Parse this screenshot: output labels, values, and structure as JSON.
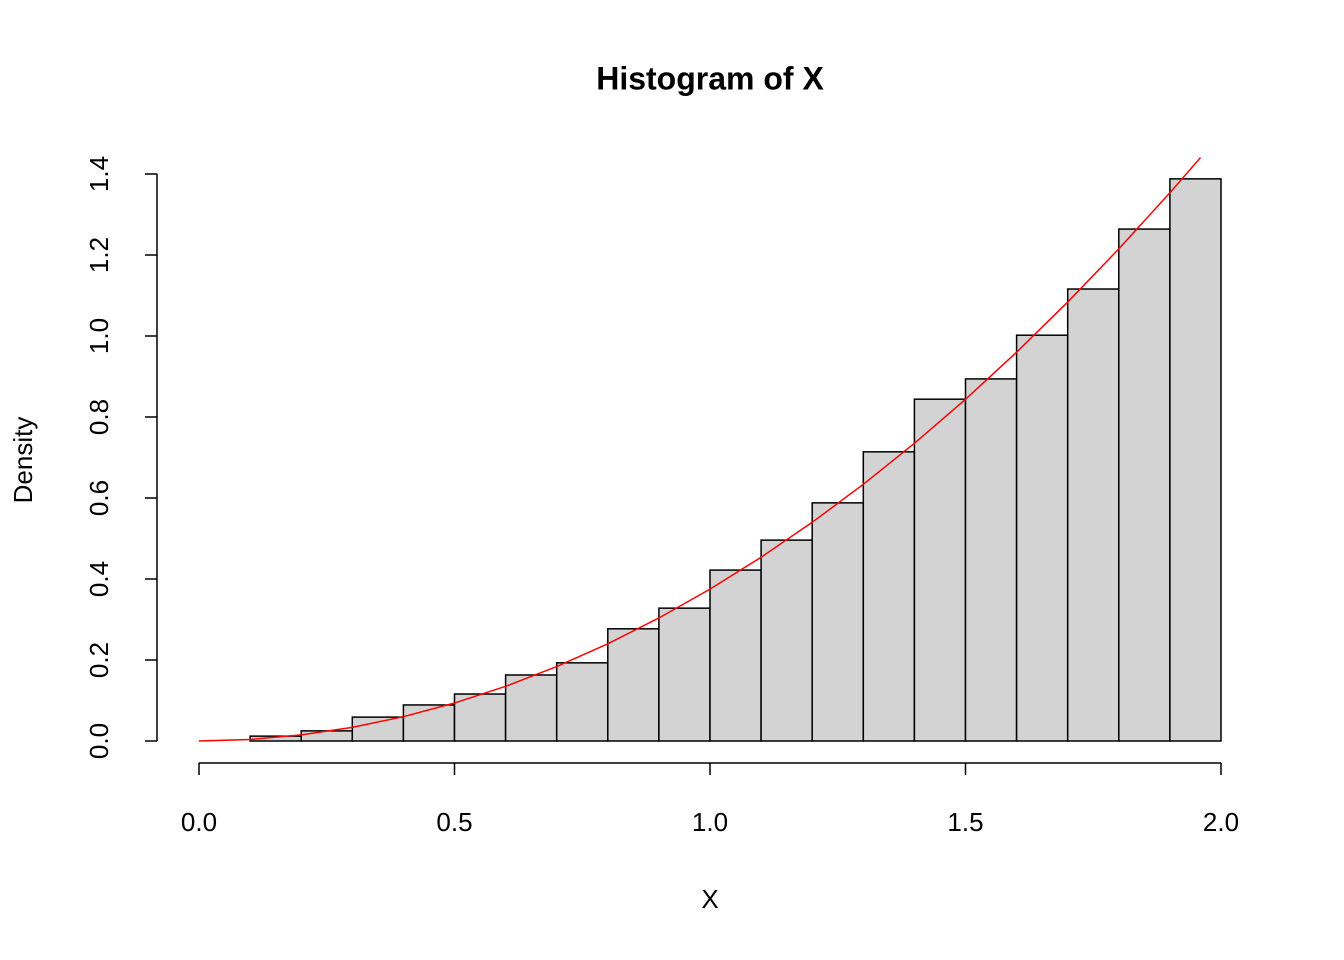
{
  "chart_data": {
    "type": "histogram",
    "title": "Histogram of X",
    "xlabel": "X",
    "ylabel": "Density",
    "bins": [
      0,
      0.1,
      0.2,
      0.3,
      0.4,
      0.5,
      0.6,
      0.7,
      0.8,
      0.9,
      1.0,
      1.1,
      1.2,
      1.3,
      1.4,
      1.5,
      1.6,
      1.7,
      1.8,
      1.9,
      2.0
    ],
    "values": [
      0,
      0.012,
      0.025,
      0.059,
      0.089,
      0.116,
      0.163,
      0.193,
      0.277,
      0.328,
      0.422,
      0.496,
      0.588,
      0.714,
      0.844,
      0.894,
      1.002,
      1.116,
      1.264,
      1.388
    ],
    "color": "#d3d3d3",
    "curve": {
      "color": "#ff0000",
      "x": [
        0,
        0.1,
        0.2,
        0.3,
        0.4,
        0.5,
        0.6,
        0.7,
        0.8,
        0.9,
        1.0,
        1.1,
        1.2,
        1.3,
        1.4,
        1.5,
        1.6,
        1.7,
        1.8,
        1.9,
        1.96
      ],
      "y": [
        0,
        0.00375,
        0.015,
        0.03375,
        0.06,
        0.09375,
        0.135,
        0.18375,
        0.24,
        0.30375,
        0.375,
        0.45375,
        0.54,
        0.63375,
        0.735,
        0.84375,
        0.96,
        1.08375,
        1.215,
        1.35375,
        1.4406
      ]
    },
    "xlim": [
      0,
      2
    ],
    "ylim": [
      0,
      1.4
    ],
    "xticks": [
      {
        "value": 0,
        "label": "0.0"
      },
      0.5,
      {
        "value": 1,
        "label": "1.0"
      },
      1.5,
      {
        "value": 2,
        "label": "2.0"
      }
    ],
    "yticks": [
      {
        "value": 0,
        "label": "0.0"
      },
      0.2,
      0.4,
      0.6,
      0.8,
      {
        "value": 1,
        "label": "1.0"
      },
      1.2,
      1.4
    ]
  }
}
